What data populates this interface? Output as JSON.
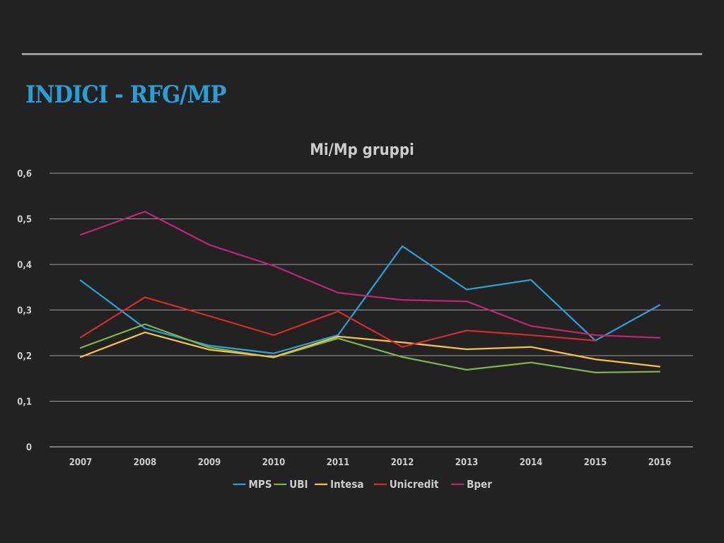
{
  "slide": {
    "title": "INDICI - RFG/MP"
  },
  "chart_data": {
    "type": "line",
    "title": "Mi/Mp gruppi",
    "xlabel": "",
    "ylabel": "",
    "ylim": [
      0,
      0.6
    ],
    "yticks": [
      "0",
      "0,1",
      "0,2",
      "0,3",
      "0,4",
      "0,5",
      "0,6"
    ],
    "grid": true,
    "legend_position": "bottom",
    "categories": [
      "2007",
      "2008",
      "2009",
      "2010",
      "2011",
      "2012",
      "2013",
      "2014",
      "2015",
      "2016"
    ],
    "series": [
      {
        "name": "MPS",
        "color": "#2a9fd6",
        "values": [
          0.365,
          0.26,
          0.222,
          0.205,
          0.245,
          0.44,
          0.345,
          0.366,
          0.233,
          0.311
        ]
      },
      {
        "name": "UBI",
        "color": "#7ab648",
        "values": [
          0.217,
          0.269,
          0.218,
          0.196,
          0.238,
          0.197,
          0.169,
          0.185,
          0.163,
          0.165
        ]
      },
      {
        "name": "Intesa",
        "color": "#f6c244",
        "values": [
          0.197,
          0.251,
          0.213,
          0.197,
          0.242,
          0.229,
          0.214,
          0.219,
          0.192,
          0.176
        ]
      },
      {
        "name": "Unicredit",
        "color": "#d62b2b",
        "values": [
          0.24,
          0.328,
          0.287,
          0.245,
          0.297,
          0.219,
          0.255,
          0.245,
          0.233,
          null
        ]
      },
      {
        "name": "Bper",
        "color": "#c2256b",
        "values": [
          0.465,
          0.516,
          0.443,
          0.397,
          0.338,
          0.322,
          0.319,
          0.265,
          0.245,
          0.239
        ]
      }
    ]
  },
  "colors": {
    "background": "#222222",
    "title": "#2a9fd6",
    "text": "#cccccc",
    "grid": "#9a9a9a"
  }
}
